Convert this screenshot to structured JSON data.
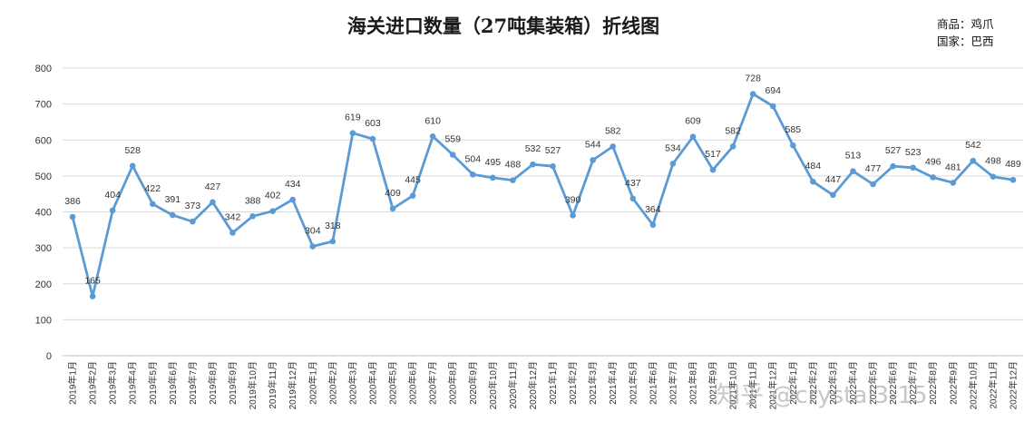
{
  "chart_data": {
    "type": "line",
    "title": "海关进口数量（27吨集装箱）折线图",
    "meta": {
      "product": "商品：鸡爪",
      "country": "国家：巴西"
    },
    "xlabel": "",
    "ylabel": "",
    "ylim": [
      0,
      800
    ],
    "yticks": [
      0,
      100,
      200,
      300,
      400,
      500,
      600,
      700,
      800
    ],
    "grid": true,
    "legend": "none",
    "series_color": "#5b9bd5",
    "categories": [
      "2019年1月",
      "2019年2月",
      "2019年3月",
      "2019年4月",
      "2019年5月",
      "2019年6月",
      "2019年7月",
      "2019年8月",
      "2019年9月",
      "2019年10月",
      "2019年11月",
      "2019年12月",
      "2020年1月",
      "2020年2月",
      "2020年3月",
      "2020年4月",
      "2020年5月",
      "2020年6月",
      "2020年7月",
      "2020年8月",
      "2020年9月",
      "2020年10月",
      "2020年11月",
      "2020年12月",
      "2021年1月",
      "2021年2月",
      "2021年3月",
      "2021年4月",
      "2021年5月",
      "2021年6月",
      "2021年7月",
      "2021年8月",
      "2021年9月",
      "2021年10月",
      "2021年11月",
      "2021年12月",
      "2022年1月",
      "2022年2月",
      "2022年3月",
      "2022年4月",
      "2022年5月",
      "2022年6月",
      "2022年7月",
      "2022年8月",
      "2022年9月",
      "2022年10月",
      "2022年11月",
      "2022年12月"
    ],
    "values": [
      386,
      165,
      404,
      528,
      422,
      391,
      373,
      427,
      342,
      388,
      402,
      434,
      304,
      318,
      619,
      603,
      409,
      445,
      610,
      559,
      504,
      495,
      488,
      532,
      527,
      390,
      544,
      582,
      437,
      364,
      534,
      609,
      517,
      582,
      728,
      694,
      585,
      484,
      447,
      513,
      477,
      527,
      523,
      496,
      481,
      542,
      498,
      489
    ]
  },
  "watermark": "知乎 @crystal3-15"
}
